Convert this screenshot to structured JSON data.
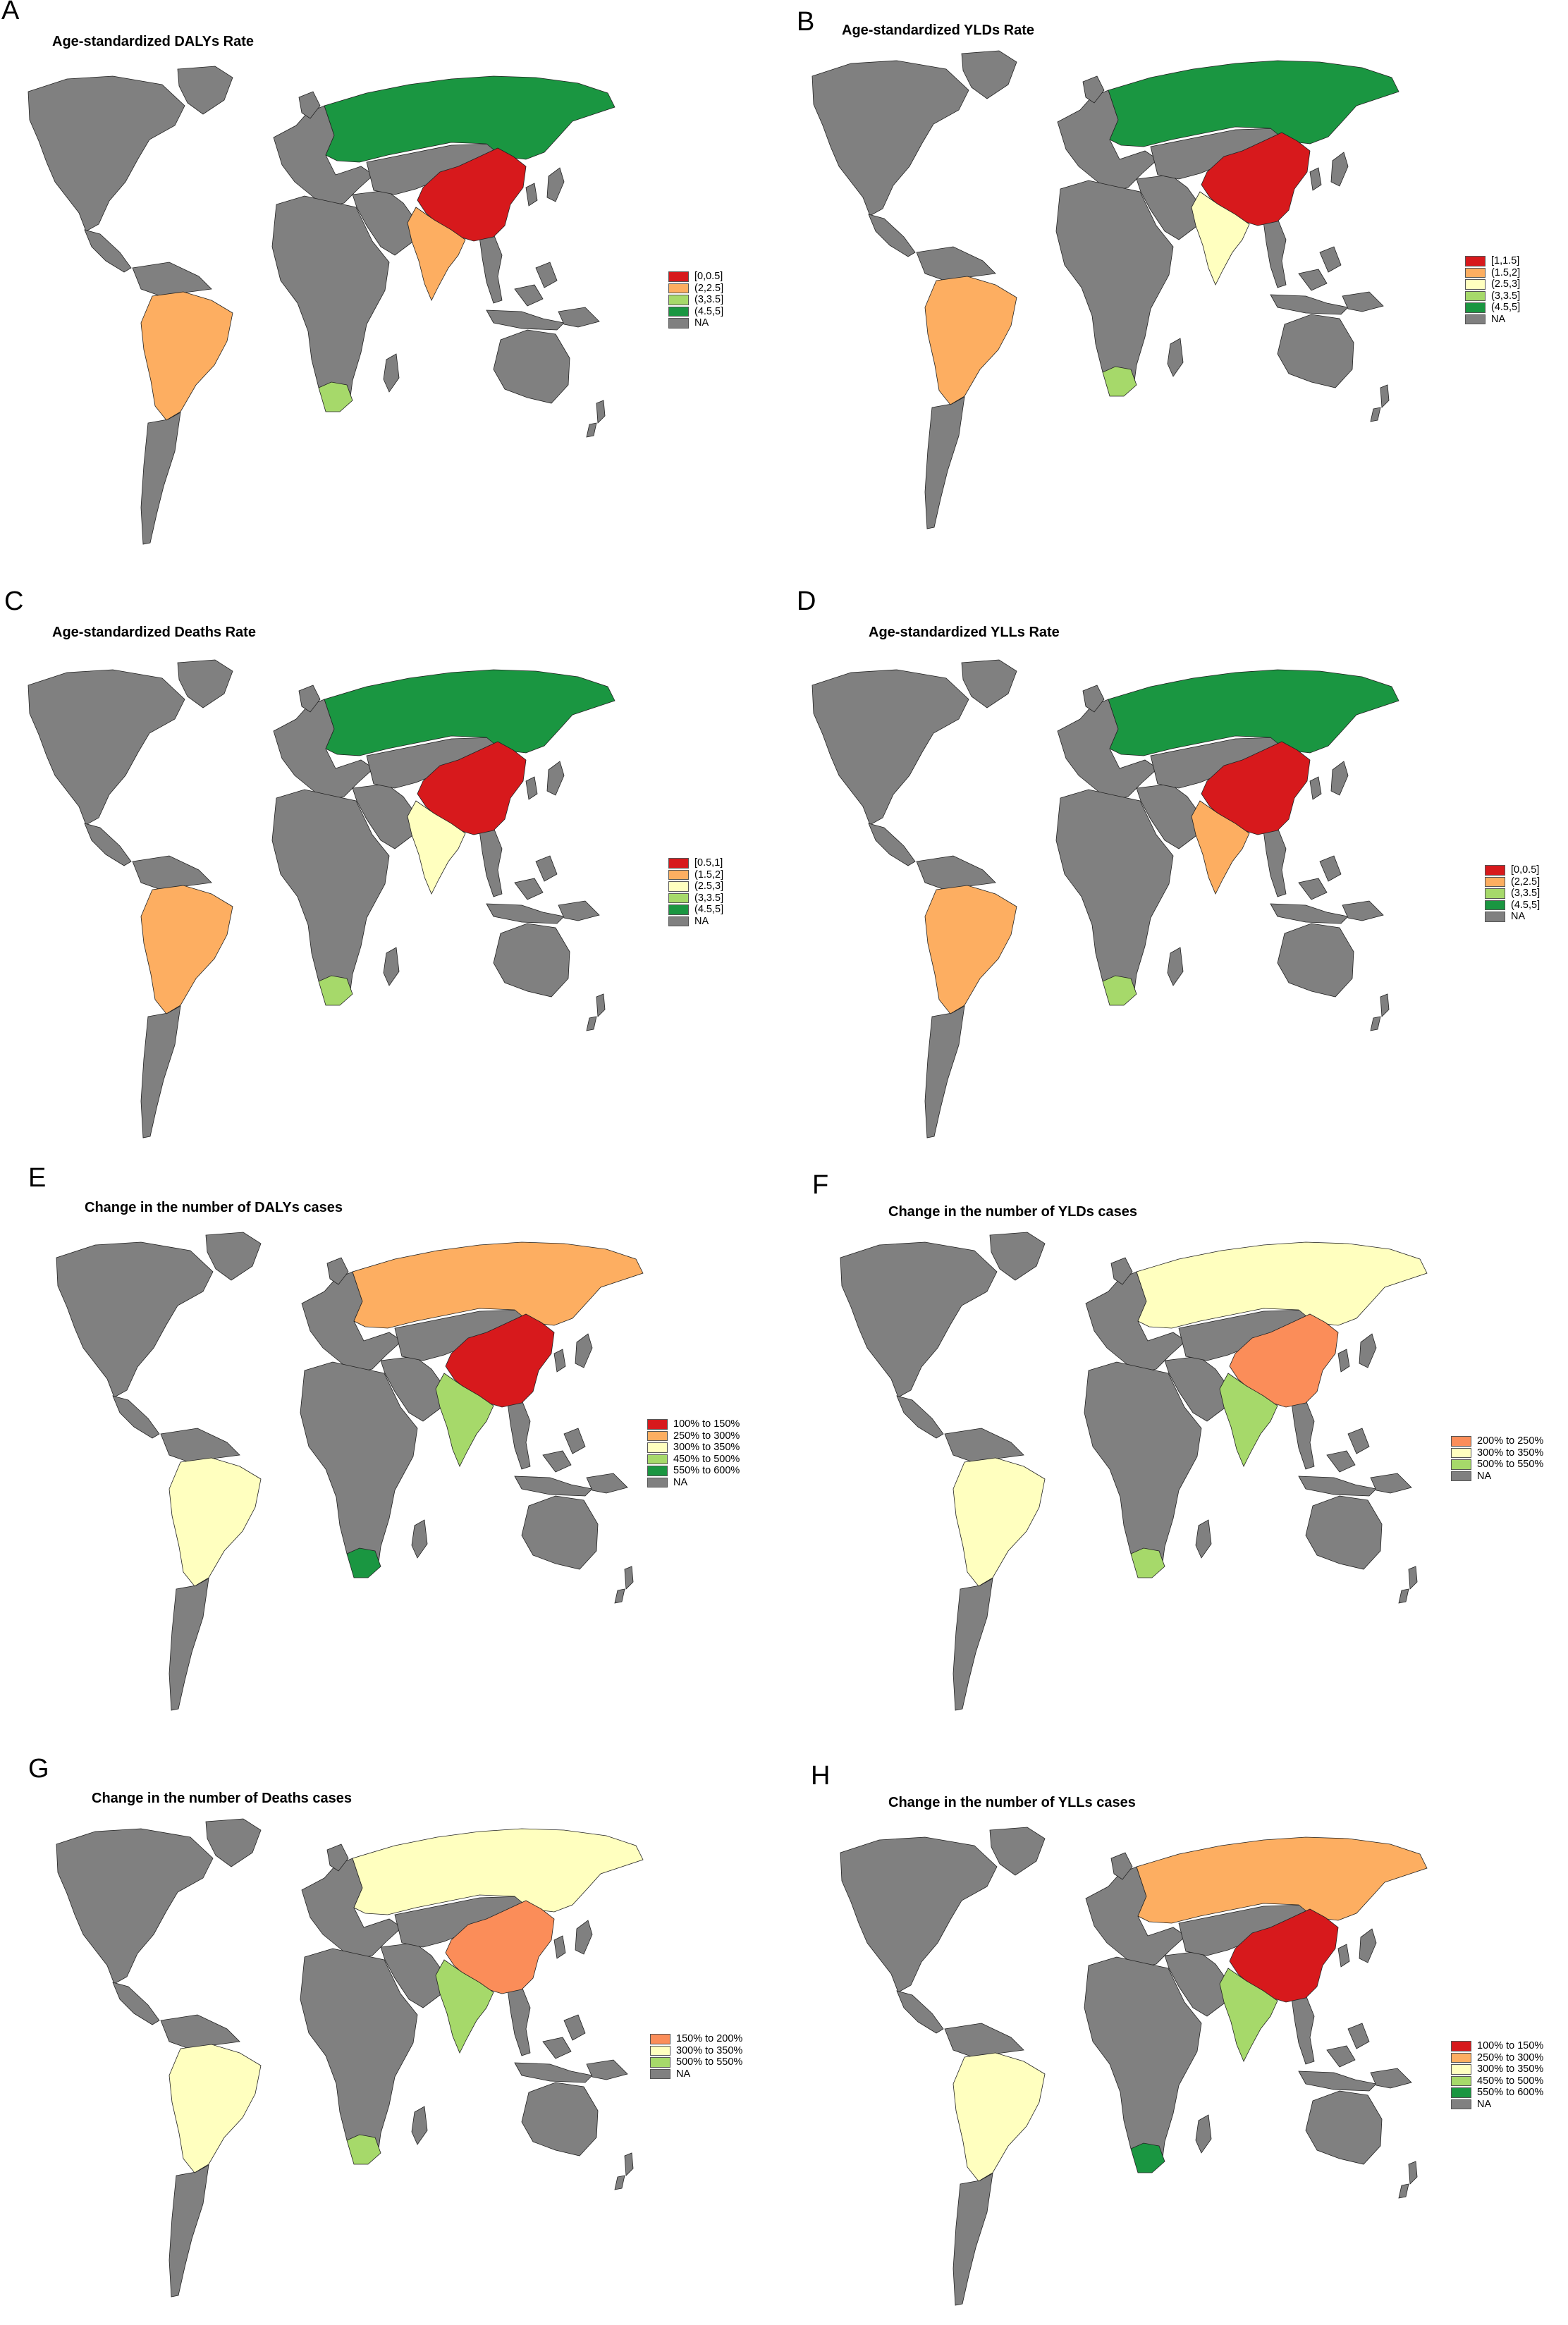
{
  "colors": {
    "red": "#d7191c",
    "orange": "#fdae61",
    "pale_yellow": "#ffffbf",
    "light_green": "#a6d96a",
    "dark_green": "#1a9641",
    "salmon": "#fb8d59",
    "na_grey": "#808080",
    "border": "#222222"
  },
  "panels": [
    {
      "letter": "A",
      "title": "Age-standardized DALYs Rate",
      "fills": {
        "russia": "dark_green",
        "china": "red",
        "india": "orange",
        "brazil": "orange",
        "south_africa": "light_green"
      },
      "legend": [
        {
          "label": "[0,0.5]",
          "color": "red"
        },
        {
          "label": "(2,2.5]",
          "color": "orange"
        },
        {
          "label": "(3,3.5]",
          "color": "light_green"
        },
        {
          "label": "(4.5,5]",
          "color": "dark_green"
        },
        {
          "label": "NA",
          "color": "na_grey"
        }
      ]
    },
    {
      "letter": "B",
      "title": "Age-standardized YLDs Rate",
      "fills": {
        "russia": "dark_green",
        "china": "red",
        "india": "pale_yellow",
        "brazil": "orange",
        "south_africa": "light_green"
      },
      "legend": [
        {
          "label": "[1,1.5]",
          "color": "red"
        },
        {
          "label": "(1.5,2]",
          "color": "orange"
        },
        {
          "label": "(2.5,3]",
          "color": "pale_yellow"
        },
        {
          "label": "(3,3.5]",
          "color": "light_green"
        },
        {
          "label": "(4.5,5]",
          "color": "dark_green"
        },
        {
          "label": "NA",
          "color": "na_grey"
        }
      ]
    },
    {
      "letter": "C",
      "title": "Age-standardized Deaths Rate",
      "fills": {
        "russia": "dark_green",
        "china": "red",
        "india": "pale_yellow",
        "brazil": "orange",
        "south_africa": "light_green"
      },
      "legend": [
        {
          "label": "[0.5,1]",
          "color": "red"
        },
        {
          "label": "(1.5,2]",
          "color": "orange"
        },
        {
          "label": "(2.5,3]",
          "color": "pale_yellow"
        },
        {
          "label": "(3,3.5]",
          "color": "light_green"
        },
        {
          "label": "(4.5,5]",
          "color": "dark_green"
        },
        {
          "label": "NA",
          "color": "na_grey"
        }
      ]
    },
    {
      "letter": "D",
      "title": "Age-standardized YLLs Rate",
      "fills": {
        "russia": "dark_green",
        "china": "red",
        "india": "orange",
        "brazil": "orange",
        "south_africa": "light_green"
      },
      "legend": [
        {
          "label": "[0,0.5]",
          "color": "red"
        },
        {
          "label": "(2,2.5]",
          "color": "orange"
        },
        {
          "label": "(3,3.5]",
          "color": "light_green"
        },
        {
          "label": "(4.5,5]",
          "color": "dark_green"
        },
        {
          "label": "NA",
          "color": "na_grey"
        }
      ]
    },
    {
      "letter": "E",
      "title": "Change in the number of DALYs cases",
      "fills": {
        "russia": "orange",
        "china": "red",
        "india": "light_green",
        "brazil": "pale_yellow",
        "south_africa": "dark_green"
      },
      "legend": [
        {
          "label": "100% to 150%",
          "color": "red"
        },
        {
          "label": "250% to 300%",
          "color": "orange"
        },
        {
          "label": "300% to 350%",
          "color": "pale_yellow"
        },
        {
          "label": "450% to 500%",
          "color": "light_green"
        },
        {
          "label": "550% to 600%",
          "color": "dark_green"
        },
        {
          "label": "NA",
          "color": "na_grey"
        }
      ]
    },
    {
      "letter": "F",
      "title": "Change in the number of YLDs cases",
      "fills": {
        "russia": "pale_yellow",
        "china": "salmon",
        "india": "light_green",
        "brazil": "pale_yellow",
        "south_africa": "light_green"
      },
      "legend": [
        {
          "label": "200% to 250%",
          "color": "salmon"
        },
        {
          "label": "300% to 350%",
          "color": "pale_yellow"
        },
        {
          "label": "500% to 550%",
          "color": "light_green"
        },
        {
          "label": "NA",
          "color": "na_grey"
        }
      ]
    },
    {
      "letter": "G",
      "title": "Change in the number of Deaths cases",
      "fills": {
        "russia": "pale_yellow",
        "china": "salmon",
        "india": "light_green",
        "brazil": "pale_yellow",
        "south_africa": "light_green"
      },
      "legend": [
        {
          "label": "150% to 200%",
          "color": "salmon"
        },
        {
          "label": "300% to 350%",
          "color": "pale_yellow"
        },
        {
          "label": "500% to 550%",
          "color": "light_green"
        },
        {
          "label": "NA",
          "color": "na_grey"
        }
      ]
    },
    {
      "letter": "H",
      "title": "Change in the number of YLLs cases",
      "fills": {
        "russia": "orange",
        "china": "red",
        "india": "light_green",
        "brazil": "pale_yellow",
        "south_africa": "dark_green"
      },
      "legend": [
        {
          "label": "100% to 150%",
          "color": "red"
        },
        {
          "label": "250% to 300%",
          "color": "orange"
        },
        {
          "label": "300% to 350%",
          "color": "pale_yellow"
        },
        {
          "label": "450% to 500%",
          "color": "light_green"
        },
        {
          "label": "550% to 600%",
          "color": "dark_green"
        },
        {
          "label": "NA",
          "color": "na_grey"
        }
      ]
    }
  ]
}
